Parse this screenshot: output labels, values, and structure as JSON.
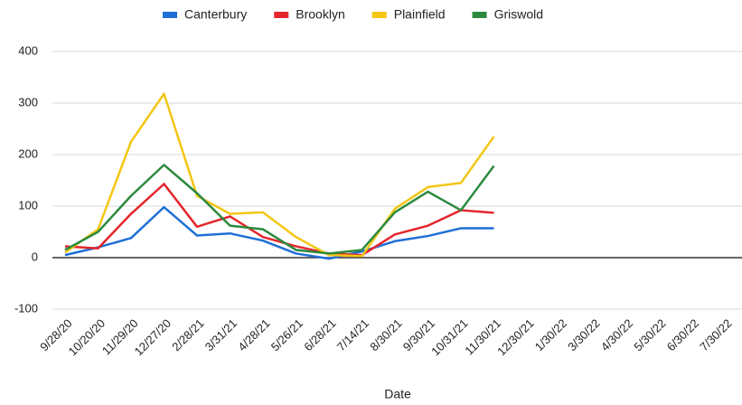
{
  "chart_data": {
    "type": "line",
    "x_label": "Date",
    "categories": [
      "9/28/20",
      "10/20/20",
      "11/29/20",
      "12/27/20",
      "2/28/21",
      "3/31/21",
      "4/28/21",
      "5/26/21",
      "6/28/21",
      "7/14/21",
      "8/30/21",
      "9/30/21",
      "10/31/21",
      "11/30/21",
      "12/30/21",
      "1/30/22",
      "3/30/22",
      "4/30/22",
      "5/30/22",
      "6/30/22",
      "7/30/22"
    ],
    "series": [
      {
        "name": "Canterbury",
        "color": "#1f6fd6",
        "values": [
          5,
          20,
          38,
          98,
          43,
          47,
          33,
          8,
          -2,
          12,
          32,
          42,
          57,
          57,
          null,
          null,
          null,
          null,
          null,
          null,
          null
        ]
      },
      {
        "name": "Brooklyn",
        "color": "#e3262c",
        "values": [
          22,
          18,
          85,
          143,
          60,
          80,
          40,
          22,
          8,
          5,
          45,
          62,
          92,
          87,
          null,
          null,
          null,
          null,
          null,
          null,
          null
        ]
      },
      {
        "name": "Plainfield",
        "color": "#f3c614",
        "values": [
          10,
          55,
          225,
          318,
          120,
          85,
          88,
          40,
          5,
          3,
          95,
          137,
          145,
          235,
          null,
          null,
          null,
          null,
          null,
          null,
          null
        ]
      },
      {
        "name": "Griswold",
        "color": "#2b8a3e",
        "values": [
          15,
          50,
          120,
          180,
          125,
          62,
          55,
          15,
          8,
          15,
          88,
          128,
          92,
          178,
          null,
          null,
          null,
          null,
          null,
          null,
          null
        ]
      }
    ],
    "ylim": [
      -100,
      400
    ],
    "yticks": [
      -100,
      0,
      100,
      200,
      300,
      400
    ],
    "grid": true,
    "legend": "top"
  }
}
